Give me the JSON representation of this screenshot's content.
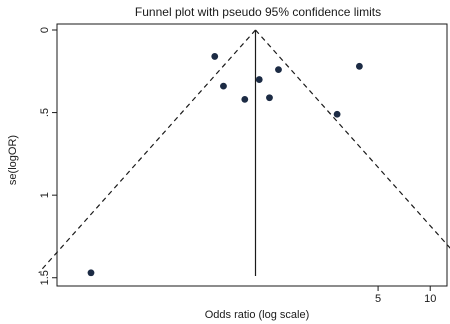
{
  "chart_data": {
    "type": "scatter",
    "title": "Funnel plot with pseudo 95% confidence limits",
    "xlabel": "Odds ratio (log scale)",
    "ylabel": "se(logOR)",
    "x_scale": "log",
    "x_ticks": [
      {
        "value": 5,
        "label": "5"
      },
      {
        "value": 10,
        "label": "10"
      }
    ],
    "y_ticks": [
      {
        "value": 0,
        "label": "0"
      },
      {
        "value": 0.5,
        "label": ".5"
      },
      {
        "value": 1,
        "label": "1"
      },
      {
        "value": 1.5,
        "label": "1.5"
      }
    ],
    "xlim": [
      0.07,
      12.5
    ],
    "ylim": [
      0,
      1.55
    ],
    "y_reversed": true,
    "grid": false,
    "pooled_or": 0.98,
    "ci_multiplier": 1.96,
    "points": [
      {
        "x": 0.57,
        "y": 0.16
      },
      {
        "x": 0.64,
        "y": 0.34
      },
      {
        "x": 0.85,
        "y": 0.42
      },
      {
        "x": 1.03,
        "y": 0.3
      },
      {
        "x": 1.18,
        "y": 0.41
      },
      {
        "x": 1.33,
        "y": 0.24
      },
      {
        "x": 2.9,
        "y": 0.51
      },
      {
        "x": 3.9,
        "y": 0.22
      },
      {
        "x": 0.11,
        "y": 1.47
      }
    ],
    "colors": {
      "points": "#1c2b44",
      "lines": "#1a1a1a"
    }
  }
}
